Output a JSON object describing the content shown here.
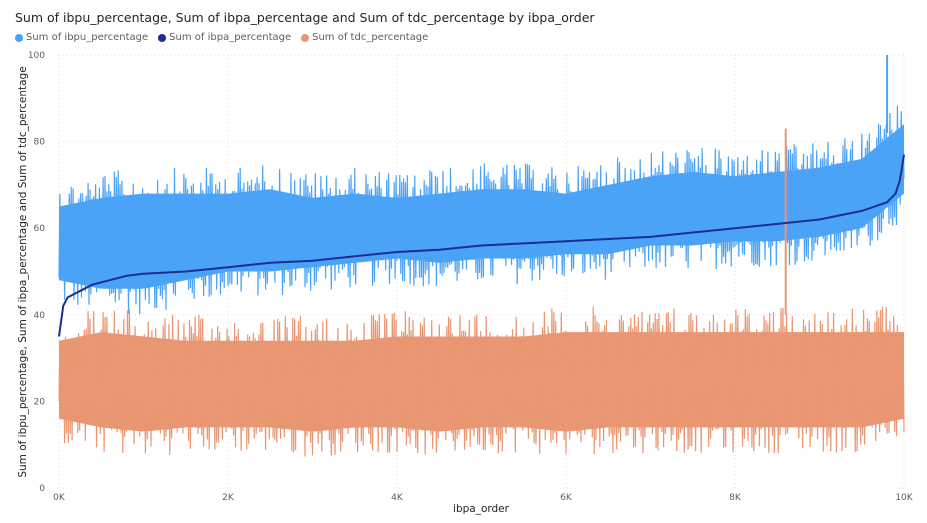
{
  "title": "Sum of ibpu_percentage, Sum of ibpa_percentage and Sum of tdc_percentage by ibpa_order",
  "chart_data": {
    "type": "line",
    "xlabel": "ibpa_order",
    "ylabel": "Sum of ibpu_percentage, Sum of ibpa_percentage and Sum of tdc_percentage",
    "xlim": [
      0,
      10000
    ],
    "ylim": [
      0,
      100
    ],
    "x_ticks": [
      0,
      2000,
      4000,
      6000,
      8000,
      10000
    ],
    "x_tick_labels": [
      "0K",
      "2K",
      "4K",
      "6K",
      "8K",
      "10K"
    ],
    "y_ticks": [
      0,
      20,
      40,
      60,
      80,
      100
    ],
    "y_tick_labels": [
      "0",
      "20",
      "40",
      "60",
      "80",
      "100"
    ],
    "grid": "dotted horizontal",
    "legend_position": "top-left",
    "series": [
      {
        "name": "Sum of ibpu_percentage",
        "color": "#4aa3f7",
        "x": [
          0,
          500,
          1000,
          1500,
          2000,
          2500,
          3000,
          3500,
          4000,
          4500,
          5000,
          5500,
          6000,
          6500,
          7000,
          7500,
          8000,
          8500,
          9000,
          9500,
          10000
        ],
        "lower": [
          42,
          40,
          40,
          42,
          44,
          44,
          45,
          46,
          47,
          46,
          47,
          47,
          48,
          48,
          50,
          50,
          51,
          51,
          52,
          54,
          62
        ],
        "mean": [
          50,
          50,
          51,
          52,
          52,
          53,
          54,
          54,
          55,
          56,
          57,
          57,
          58,
          58,
          59,
          60,
          61,
          61,
          62,
          63,
          67
        ],
        "upper": [
          71,
          73,
          74,
          74,
          74,
          75,
          73,
          74,
          73,
          74,
          75,
          75,
          74,
          76,
          78,
          79,
          78,
          79,
          80,
          82,
          90
        ],
        "max": 100
      },
      {
        "name": "Sum of ibpa_percentage",
        "color": "#1d2e8f",
        "x": [
          0,
          50,
          100,
          200,
          300,
          400,
          600,
          800,
          1000,
          1500,
          2000,
          2500,
          3000,
          3500,
          4000,
          4500,
          5000,
          5500,
          6000,
          6500,
          7000,
          7500,
          8000,
          8500,
          9000,
          9500,
          9800,
          9900,
          9950,
          10000
        ],
        "values": [
          35,
          42,
          44,
          45,
          46,
          47,
          48,
          49,
          49.5,
          50,
          51,
          52,
          52.5,
          53.5,
          54.5,
          55,
          56,
          56.5,
          57,
          57.5,
          58,
          59,
          60,
          61,
          62,
          64,
          66,
          68,
          71,
          77
        ]
      },
      {
        "name": "Sum of tdc_percentage",
        "color": "#e99673",
        "x": [
          0,
          500,
          1000,
          1500,
          2000,
          2500,
          3000,
          3500,
          4000,
          4500,
          5000,
          5500,
          6000,
          6500,
          7000,
          7500,
          8000,
          8500,
          9000,
          9500,
          10000
        ],
        "lower": [
          10,
          8,
          7,
          8,
          8,
          8,
          7,
          8,
          8,
          7,
          8,
          8,
          7,
          8,
          8,
          8,
          8,
          8,
          8,
          8,
          10
        ],
        "mean": [
          21,
          22,
          22,
          22,
          22,
          21,
          22,
          22,
          22,
          22,
          22,
          22,
          22,
          22,
          23,
          23,
          23,
          23,
          23,
          23,
          23
        ],
        "upper": [
          40,
          42,
          41,
          40,
          40,
          40,
          40,
          40,
          41,
          41,
          41,
          41,
          42,
          42,
          42,
          42,
          42,
          42,
          42,
          42,
          42
        ],
        "max": 83
      }
    ]
  }
}
